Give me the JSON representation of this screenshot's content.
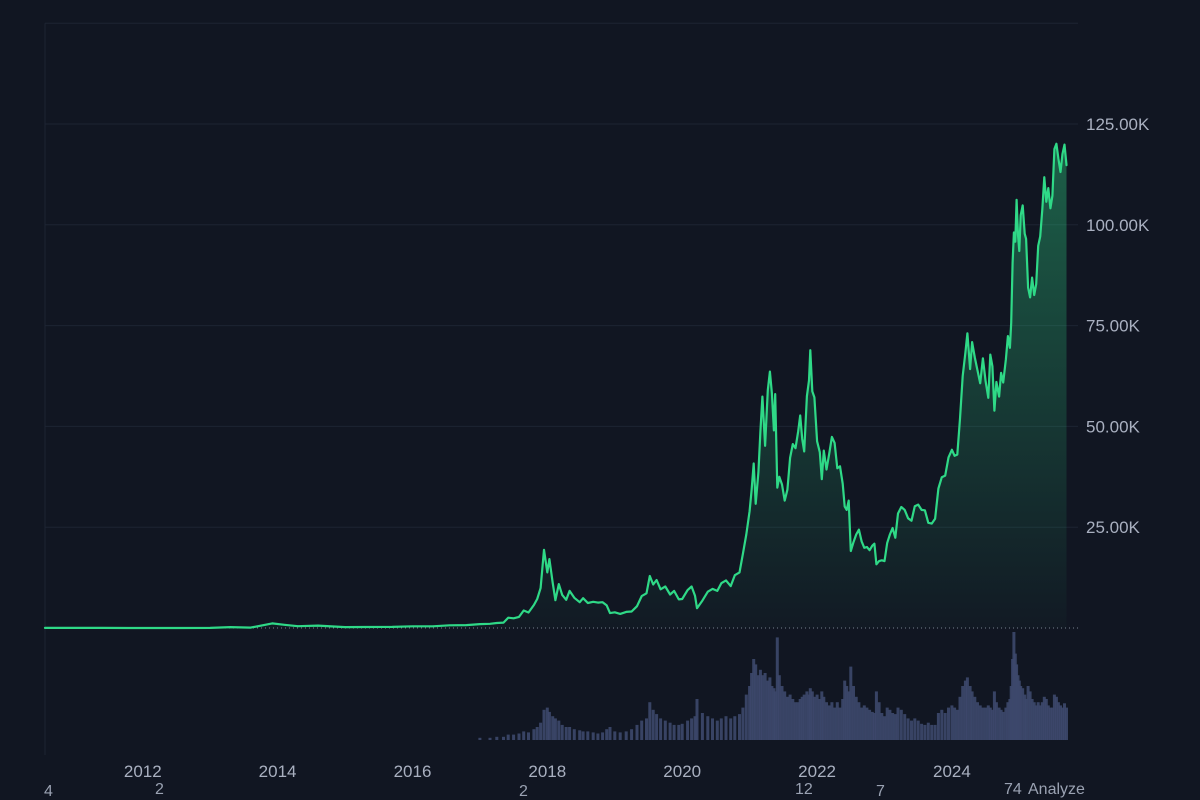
{
  "app": {
    "colors": {
      "background": "#111622",
      "grid": "#1d2433",
      "axis_text": "#a9b0c0",
      "line": "#2fd987",
      "area_top": "rgba(47,217,135,0.38)",
      "area_bottom": "rgba(47,217,135,0.02)",
      "volume": "#3d486b",
      "zero_dotted": "rgba(190,200,215,0.6)",
      "footer_text": "#9aa2b2"
    }
  },
  "footer": {
    "items": [
      "4",
      "2",
      "2",
      "12",
      "7",
      "74",
      "Analyze"
    ]
  },
  "chart_data": {
    "type": "area",
    "title": "",
    "grid": "horizontal-only",
    "legend": "none",
    "x_unit": "year",
    "x_domain": [
      2010.55,
      2025.87
    ],
    "y_domain": [
      0,
      150
    ],
    "y_unit": "K (USD thousands)",
    "baseline_dotted_value": 0,
    "y_ticks": [
      {
        "value": 25,
        "label": "25.00K"
      },
      {
        "value": 50,
        "label": "50.00K"
      },
      {
        "value": 75,
        "label": "75.00K"
      },
      {
        "value": 100,
        "label": "100.00K"
      },
      {
        "value": 125,
        "label": "125.00K"
      }
    ],
    "y_grid_values": [
      25,
      50,
      75,
      100,
      125,
      150
    ],
    "x_ticks": [
      {
        "value": 2012,
        "label": "2012"
      },
      {
        "value": 2014,
        "label": "2014"
      },
      {
        "value": 2016,
        "label": "2016"
      },
      {
        "value": 2018,
        "label": "2018"
      },
      {
        "value": 2020,
        "label": "2020"
      },
      {
        "value": 2022,
        "label": "2022"
      },
      {
        "value": 2024,
        "label": "2024"
      }
    ],
    "series": [
      {
        "name": "price",
        "type": "line+area",
        "unit": "USD thousands"
      },
      {
        "name": "volume",
        "type": "histogram",
        "unit": "relative 0-1 of volume pane height"
      }
    ],
    "points": [
      [
        2010.55,
        0.02,
        0
      ],
      [
        2011.0,
        0.03,
        0
      ],
      [
        2011.4,
        0.03,
        0
      ],
      [
        2011.9,
        0.01,
        0
      ],
      [
        2012.5,
        0.01,
        0
      ],
      [
        2013.0,
        0.02,
        0
      ],
      [
        2013.3,
        0.23,
        0
      ],
      [
        2013.6,
        0.1,
        0
      ],
      [
        2013.92,
        1.15,
        0
      ],
      [
        2014.1,
        0.8,
        0
      ],
      [
        2014.3,
        0.45,
        0
      ],
      [
        2014.6,
        0.6,
        0
      ],
      [
        2015.0,
        0.22,
        0
      ],
      [
        2015.3,
        0.24,
        0
      ],
      [
        2015.7,
        0.27,
        0
      ],
      [
        2016.0,
        0.43,
        0
      ],
      [
        2016.3,
        0.42,
        0
      ],
      [
        2016.55,
        0.68,
        0
      ],
      [
        2016.8,
        0.72,
        0
      ],
      [
        2017.0,
        0.97,
        0.02
      ],
      [
        2017.15,
        1.05,
        0.02
      ],
      [
        2017.25,
        1.25,
        0.03
      ],
      [
        2017.35,
        1.35,
        0.03
      ],
      [
        2017.42,
        2.55,
        0.05
      ],
      [
        2017.5,
        2.4,
        0.05
      ],
      [
        2017.58,
        2.75,
        0.06
      ],
      [
        2017.65,
        4.35,
        0.08
      ],
      [
        2017.72,
        3.85,
        0.07
      ],
      [
        2017.8,
        5.7,
        0.1
      ],
      [
        2017.85,
        7.2,
        0.12
      ],
      [
        2017.9,
        9.9,
        0.16
      ],
      [
        2017.95,
        19.4,
        0.28
      ],
      [
        2018.0,
        13.8,
        0.3
      ],
      [
        2018.03,
        17.1,
        0.26
      ],
      [
        2018.08,
        11.2,
        0.22
      ],
      [
        2018.12,
        6.9,
        0.2
      ],
      [
        2018.17,
        10.9,
        0.18
      ],
      [
        2018.22,
        8.2,
        0.14
      ],
      [
        2018.28,
        7.0,
        0.12
      ],
      [
        2018.33,
        9.2,
        0.12
      ],
      [
        2018.4,
        7.5,
        0.1
      ],
      [
        2018.48,
        6.4,
        0.09
      ],
      [
        2018.53,
        7.4,
        0.08
      ],
      [
        2018.6,
        6.2,
        0.08
      ],
      [
        2018.68,
        6.5,
        0.07
      ],
      [
        2018.75,
        6.3,
        0.06
      ],
      [
        2018.82,
        6.4,
        0.07
      ],
      [
        2018.88,
        5.6,
        0.1
      ],
      [
        2018.93,
        3.7,
        0.12
      ],
      [
        2019.0,
        3.9,
        0.08
      ],
      [
        2019.08,
        3.5,
        0.07
      ],
      [
        2019.17,
        4.0,
        0.08
      ],
      [
        2019.25,
        4.1,
        0.1
      ],
      [
        2019.33,
        5.4,
        0.14
      ],
      [
        2019.4,
        7.9,
        0.18
      ],
      [
        2019.47,
        8.6,
        0.2
      ],
      [
        2019.52,
        12.9,
        0.35
      ],
      [
        2019.57,
        10.8,
        0.28
      ],
      [
        2019.62,
        11.9,
        0.24
      ],
      [
        2019.68,
        9.6,
        0.2
      ],
      [
        2019.75,
        10.3,
        0.18
      ],
      [
        2019.82,
        8.3,
        0.16
      ],
      [
        2019.88,
        9.2,
        0.14
      ],
      [
        2019.95,
        7.1,
        0.14
      ],
      [
        2020.0,
        7.2,
        0.15
      ],
      [
        2020.08,
        9.4,
        0.18
      ],
      [
        2020.14,
        10.3,
        0.2
      ],
      [
        2020.19,
        8.0,
        0.22
      ],
      [
        2020.22,
        4.9,
        0.38
      ],
      [
        2020.3,
        6.8,
        0.25
      ],
      [
        2020.38,
        9.0,
        0.22
      ],
      [
        2020.45,
        9.7,
        0.2
      ],
      [
        2020.52,
        9.2,
        0.18
      ],
      [
        2020.58,
        11.1,
        0.2
      ],
      [
        2020.65,
        11.8,
        0.22
      ],
      [
        2020.72,
        10.4,
        0.2
      ],
      [
        2020.78,
        13.1,
        0.22
      ],
      [
        2020.85,
        13.8,
        0.24
      ],
      [
        2020.9,
        18.4,
        0.3
      ],
      [
        2020.95,
        23.2,
        0.42
      ],
      [
        2021.0,
        29.0,
        0.5
      ],
      [
        2021.03,
        34.2,
        0.62
      ],
      [
        2021.06,
        40.8,
        0.75
      ],
      [
        2021.09,
        30.8,
        0.7
      ],
      [
        2021.13,
        38.6,
        0.6
      ],
      [
        2021.16,
        48.7,
        0.65
      ],
      [
        2021.19,
        57.4,
        0.6
      ],
      [
        2021.23,
        45.2,
        0.62
      ],
      [
        2021.27,
        59.0,
        0.55
      ],
      [
        2021.3,
        63.6,
        0.58
      ],
      [
        2021.33,
        58.2,
        0.5
      ],
      [
        2021.36,
        49.0,
        0.48
      ],
      [
        2021.38,
        58.0,
        0.45
      ],
      [
        2021.41,
        34.8,
        0.95
      ],
      [
        2021.44,
        37.5,
        0.6
      ],
      [
        2021.48,
        35.6,
        0.5
      ],
      [
        2021.52,
        31.6,
        0.45
      ],
      [
        2021.56,
        34.3,
        0.4
      ],
      [
        2021.6,
        42.2,
        0.42
      ],
      [
        2021.64,
        45.6,
        0.38
      ],
      [
        2021.68,
        44.6,
        0.35
      ],
      [
        2021.72,
        48.8,
        0.35
      ],
      [
        2021.75,
        52.7,
        0.38
      ],
      [
        2021.78,
        46.9,
        0.4
      ],
      [
        2021.81,
        43.8,
        0.42
      ],
      [
        2021.85,
        57.5,
        0.45
      ],
      [
        2021.88,
        61.4,
        0.42
      ],
      [
        2021.9,
        68.9,
        0.48
      ],
      [
        2021.93,
        58.7,
        0.45
      ],
      [
        2021.96,
        57.2,
        0.4
      ],
      [
        2022.0,
        46.3,
        0.42
      ],
      [
        2022.04,
        43.6,
        0.38
      ],
      [
        2022.07,
        36.9,
        0.45
      ],
      [
        2022.1,
        44.0,
        0.4
      ],
      [
        2022.14,
        39.3,
        0.35
      ],
      [
        2022.18,
        43.2,
        0.32
      ],
      [
        2022.22,
        47.4,
        0.35
      ],
      [
        2022.26,
        45.9,
        0.3
      ],
      [
        2022.3,
        39.6,
        0.35
      ],
      [
        2022.34,
        40.1,
        0.3
      ],
      [
        2022.38,
        35.8,
        0.38
      ],
      [
        2022.41,
        30.1,
        0.55
      ],
      [
        2022.44,
        29.3,
        0.5
      ],
      [
        2022.47,
        31.6,
        0.45
      ],
      [
        2022.5,
        19.1,
        0.68
      ],
      [
        2022.54,
        21.3,
        0.5
      ],
      [
        2022.58,
        23.2,
        0.4
      ],
      [
        2022.62,
        24.4,
        0.35
      ],
      [
        2022.66,
        21.5,
        0.3
      ],
      [
        2022.7,
        19.9,
        0.32
      ],
      [
        2022.74,
        20.1,
        0.3
      ],
      [
        2022.78,
        19.3,
        0.28
      ],
      [
        2022.82,
        20.4,
        0.26
      ],
      [
        2022.85,
        20.9,
        0.25
      ],
      [
        2022.88,
        15.8,
        0.45
      ],
      [
        2022.92,
        16.6,
        0.35
      ],
      [
        2022.96,
        16.8,
        0.25
      ],
      [
        2023.0,
        16.6,
        0.22
      ],
      [
        2023.04,
        21.1,
        0.3
      ],
      [
        2023.08,
        23.2,
        0.28
      ],
      [
        2023.12,
        24.8,
        0.25
      ],
      [
        2023.16,
        22.4,
        0.24
      ],
      [
        2023.2,
        28.4,
        0.3
      ],
      [
        2023.25,
        30.0,
        0.28
      ],
      [
        2023.3,
        29.3,
        0.24
      ],
      [
        2023.35,
        27.2,
        0.2
      ],
      [
        2023.4,
        26.6,
        0.18
      ],
      [
        2023.45,
        30.2,
        0.2
      ],
      [
        2023.5,
        30.6,
        0.18
      ],
      [
        2023.55,
        29.3,
        0.15
      ],
      [
        2023.6,
        29.2,
        0.14
      ],
      [
        2023.65,
        26.1,
        0.16
      ],
      [
        2023.7,
        25.9,
        0.14
      ],
      [
        2023.75,
        27.1,
        0.14
      ],
      [
        2023.8,
        34.6,
        0.25
      ],
      [
        2023.85,
        37.4,
        0.28
      ],
      [
        2023.9,
        37.8,
        0.25
      ],
      [
        2023.95,
        42.3,
        0.3
      ],
      [
        2024.0,
        44.2,
        0.32
      ],
      [
        2024.04,
        42.7,
        0.3
      ],
      [
        2024.08,
        43.0,
        0.28
      ],
      [
        2024.12,
        51.9,
        0.4
      ],
      [
        2024.16,
        62.5,
        0.5
      ],
      [
        2024.2,
        68.3,
        0.55
      ],
      [
        2024.23,
        73.1,
        0.58
      ],
      [
        2024.27,
        64.2,
        0.5
      ],
      [
        2024.3,
        70.9,
        0.45
      ],
      [
        2024.34,
        67.1,
        0.4
      ],
      [
        2024.38,
        63.9,
        0.35
      ],
      [
        2024.42,
        60.7,
        0.32
      ],
      [
        2024.46,
        66.9,
        0.3
      ],
      [
        2024.5,
        61.2,
        0.3
      ],
      [
        2024.54,
        57.1,
        0.32
      ],
      [
        2024.57,
        67.8,
        0.3
      ],
      [
        2024.6,
        64.9,
        0.28
      ],
      [
        2024.63,
        53.9,
        0.45
      ],
      [
        2024.66,
        61.0,
        0.35
      ],
      [
        2024.7,
        57.4,
        0.3
      ],
      [
        2024.73,
        63.3,
        0.28
      ],
      [
        2024.76,
        60.9,
        0.26
      ],
      [
        2024.8,
        66.7,
        0.3
      ],
      [
        2024.83,
        72.4,
        0.35
      ],
      [
        2024.86,
        69.5,
        0.38
      ],
      [
        2024.88,
        75.7,
        0.5
      ],
      [
        2024.9,
        90.6,
        0.75
      ],
      [
        2024.92,
        98.1,
        1.0
      ],
      [
        2024.94,
        95.8,
        0.8
      ],
      [
        2024.96,
        106.2,
        0.7
      ],
      [
        2024.98,
        97.5,
        0.6
      ],
      [
        2025.0,
        93.5,
        0.55
      ],
      [
        2025.02,
        102.4,
        0.5
      ],
      [
        2025.05,
        104.8,
        0.48
      ],
      [
        2025.08,
        97.8,
        0.42
      ],
      [
        2025.1,
        96.5,
        0.38
      ],
      [
        2025.13,
        84.4,
        0.5
      ],
      [
        2025.16,
        82.0,
        0.45
      ],
      [
        2025.19,
        86.9,
        0.38
      ],
      [
        2025.22,
        82.6,
        0.35
      ],
      [
        2025.25,
        85.3,
        0.32
      ],
      [
        2025.28,
        94.8,
        0.35
      ],
      [
        2025.31,
        97.1,
        0.32
      ],
      [
        2025.34,
        103.8,
        0.35
      ],
      [
        2025.37,
        111.8,
        0.4
      ],
      [
        2025.4,
        105.7,
        0.38
      ],
      [
        2025.43,
        109.1,
        0.32
      ],
      [
        2025.46,
        104.1,
        0.3
      ],
      [
        2025.49,
        107.2,
        0.3
      ],
      [
        2025.52,
        118.8,
        0.42
      ],
      [
        2025.55,
        120.1,
        0.4
      ],
      [
        2025.58,
        116.4,
        0.35
      ],
      [
        2025.61,
        113.1,
        0.32
      ],
      [
        2025.64,
        117.6,
        0.3
      ],
      [
        2025.67,
        119.9,
        0.34
      ],
      [
        2025.7,
        114.8,
        0.3
      ]
    ]
  }
}
